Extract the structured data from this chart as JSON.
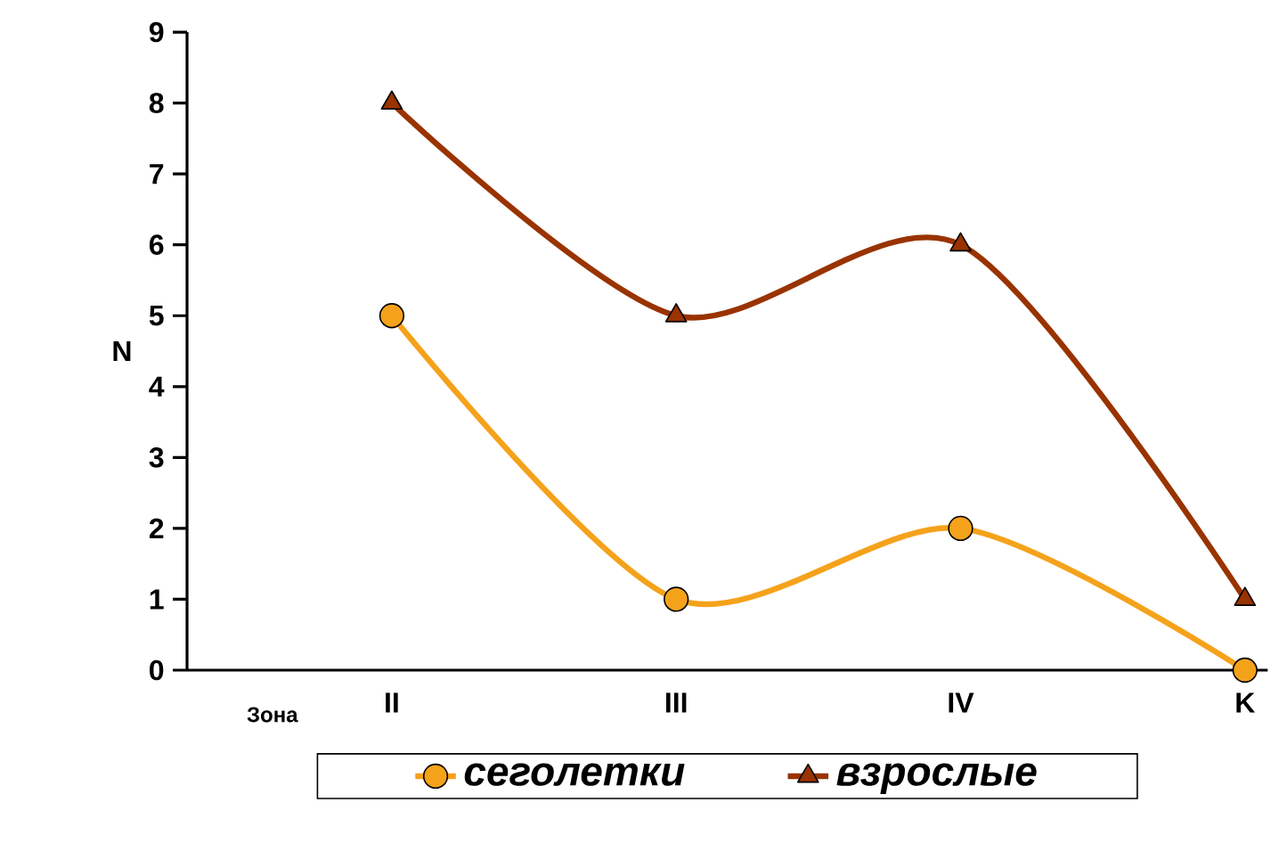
{
  "chart_data": {
    "type": "line",
    "xlabel": "Зона",
    "ylabel": "N",
    "categories": [
      "II",
      "III",
      "IV",
      "K"
    ],
    "series": [
      {
        "name": "сеголетки",
        "color": "#f5a21b",
        "values": [
          5,
          1,
          2,
          0
        ],
        "marker": "circle"
      },
      {
        "name": "взрослые",
        "color": "#993300",
        "values": [
          8,
          5,
          6,
          1
        ],
        "marker": "triangle"
      }
    ],
    "ylim": [
      0,
      9
    ],
    "yticks": [
      0,
      1,
      2,
      3,
      4,
      5,
      6,
      7,
      8,
      9
    ],
    "grid": false,
    "legend": "bottom",
    "line_style": "solid"
  }
}
